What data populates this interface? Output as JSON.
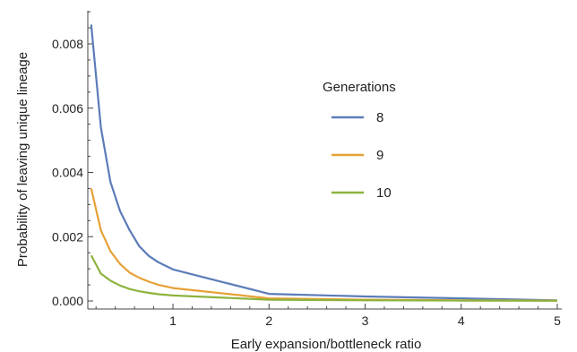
{
  "chart_data": {
    "type": "line",
    "title": "",
    "xlabel": "Early expansion/bottleneck ratio",
    "ylabel": "Probability of leaving unique lineage",
    "xlim": [
      0.1,
      5.0
    ],
    "ylim": [
      0,
      0.009
    ],
    "x_ticks": [
      1,
      2,
      3,
      4,
      5
    ],
    "y_ticks": [
      0.0,
      0.002,
      0.004,
      0.006,
      0.008
    ],
    "y_tick_labels": [
      "0.000",
      "0.002",
      "0.004",
      "0.006",
      "0.008"
    ],
    "x_tick_labels": [
      "1",
      "2",
      "3",
      "4",
      "5"
    ],
    "grid": false,
    "legend": {
      "title": "Generations",
      "placement": "right"
    },
    "x": [
      0.15,
      0.25,
      0.35,
      0.45,
      0.55,
      0.65,
      0.75,
      0.85,
      1.0,
      2.0,
      3.0,
      4.0,
      5.0
    ],
    "series": [
      {
        "name": "8",
        "color": "#5b7cb8",
        "values": [
          0.0086,
          0.0054,
          0.0037,
          0.0028,
          0.0022,
          0.0017,
          0.0014,
          0.0012,
          0.00098,
          0.00022,
          0.00014,
          8e-05,
          2e-05
        ]
      },
      {
        "name": "9",
        "color": "#e6a136",
        "values": [
          0.0035,
          0.0022,
          0.00155,
          0.00115,
          0.00088,
          0.00072,
          0.0006,
          0.0005,
          0.0004,
          8e-05,
          4e-05,
          2e-05,
          1e-05
        ]
      },
      {
        "name": "10",
        "color": "#8db33e",
        "values": [
          0.00142,
          0.00085,
          0.00063,
          0.00048,
          0.00037,
          0.0003,
          0.00025,
          0.00021,
          0.00017,
          4e-05,
          2e-05,
          1e-05,
          5e-06
        ]
      }
    ]
  }
}
